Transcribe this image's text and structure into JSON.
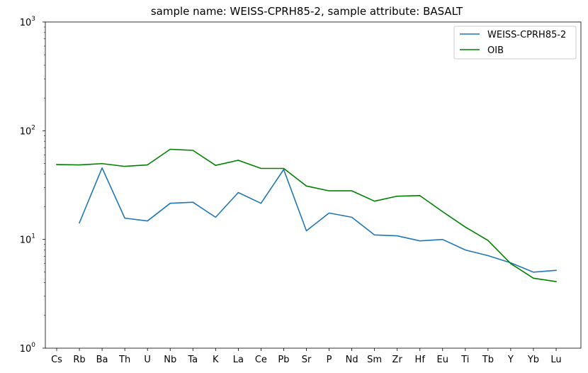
{
  "chart_data": {
    "type": "line",
    "title": "sample name: WEISS-CPRH85-2, sample attribute: BASALT",
    "xlabel": "",
    "ylabel": "",
    "yscale": "log",
    "ylim": [
      1,
      1000
    ],
    "y_ticks": [
      {
        "value": 1,
        "base": "10",
        "exp": "0"
      },
      {
        "value": 10,
        "base": "10",
        "exp": "1"
      },
      {
        "value": 100,
        "base": "10",
        "exp": "2"
      },
      {
        "value": 1000,
        "base": "10",
        "exp": "3"
      }
    ],
    "grid": false,
    "legend_position": "top-right",
    "categories": [
      "Cs",
      "Rb",
      "Ba",
      "Th",
      "U",
      "Nb",
      "Ta",
      "K",
      "La",
      "Ce",
      "Pb",
      "Sr",
      "P",
      "Nd",
      "Sm",
      "Zr",
      "Hf",
      "Eu",
      "Ti",
      "Tb",
      "Y",
      "Yb",
      "Lu"
    ],
    "series": [
      {
        "name": "WEISS-CPRH85-2",
        "color": "#1f77b4",
        "values": [
          null,
          14.2,
          45.5,
          15.7,
          14.8,
          21.5,
          22.0,
          16.0,
          27.0,
          21.5,
          44.0,
          12.0,
          17.5,
          16.0,
          11.0,
          10.8,
          9.7,
          10.0,
          8.0,
          7.1,
          6.1,
          5.0,
          5.2
        ]
      },
      {
        "name": "OIB",
        "color": "#008000",
        "values": [
          48.8,
          48.5,
          49.8,
          47.0,
          48.5,
          67.5,
          66.0,
          48.0,
          53.5,
          45.0,
          45.0,
          31.0,
          28.0,
          28.0,
          22.5,
          25.0,
          25.3,
          18.0,
          13.0,
          9.8,
          6.0,
          4.4,
          4.1
        ]
      }
    ]
  }
}
